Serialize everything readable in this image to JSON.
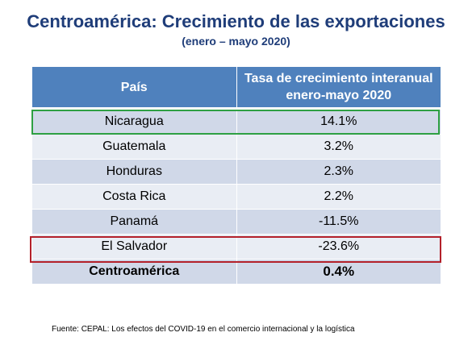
{
  "title": "Centroamérica: Crecimiento de las exportaciones",
  "subtitle": "(enero – mayo 2020)",
  "table": {
    "headers": [
      "País",
      "Tasa de crecimiento interanual enero-mayo 2020"
    ],
    "rows": [
      {
        "pais": "Nicaragua",
        "tasa": "14.1%"
      },
      {
        "pais": "Guatemala",
        "tasa": "3.2%"
      },
      {
        "pais": "Honduras",
        "tasa": "2.3%"
      },
      {
        "pais": "Costa Rica",
        "tasa": "2.2%"
      },
      {
        "pais": "Panamá",
        "tasa": "-11.5%"
      },
      {
        "pais": "El Salvador",
        "tasa": "-23.6%"
      },
      {
        "pais": "Centroamérica",
        "tasa": "0.4%"
      }
    ]
  },
  "colors": {
    "title": "#1f3d79",
    "header_bg": "#4f81bd",
    "row_dark": "#d0d8e8",
    "row_light": "#e9edf4",
    "highlight_positive": "#2ea043",
    "highlight_negative": "#b3202a"
  },
  "source": "Fuente: CEPAL: Los efectos del COVID-19 en el comercio internacional y la logística"
}
